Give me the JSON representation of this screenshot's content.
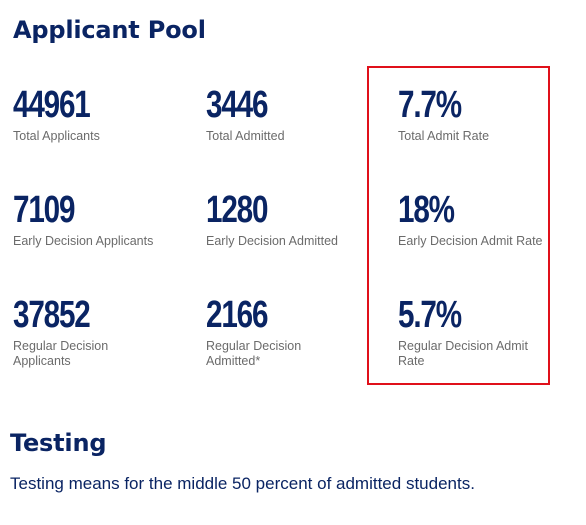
{
  "applicant_pool": {
    "title": "Applicant Pool",
    "stats": [
      {
        "value": "44961",
        "label": "Total Applicants"
      },
      {
        "value": "3446",
        "label": "Total Admitted"
      },
      {
        "value": "7.7%",
        "label": "Total Admit Rate"
      },
      {
        "value": "7109",
        "label": "Early Decision Applicants"
      },
      {
        "value": "1280",
        "label": "Early Decision Admitted"
      },
      {
        "value": "18%",
        "label": "Early Decision Admit Rate"
      },
      {
        "value": "37852",
        "label": "Regular Decision Applicants"
      },
      {
        "value": "2166",
        "label": "Regular Decision Admitted*"
      },
      {
        "value": "5.7%",
        "label": "Regular Decision Admit Rate"
      }
    ]
  },
  "testing": {
    "title": "Testing",
    "description": "Testing means for the middle 50 percent of admitted students."
  },
  "colors": {
    "heading": "#0a2463",
    "label": "#6b6b6b",
    "highlight": "#e0101a"
  }
}
